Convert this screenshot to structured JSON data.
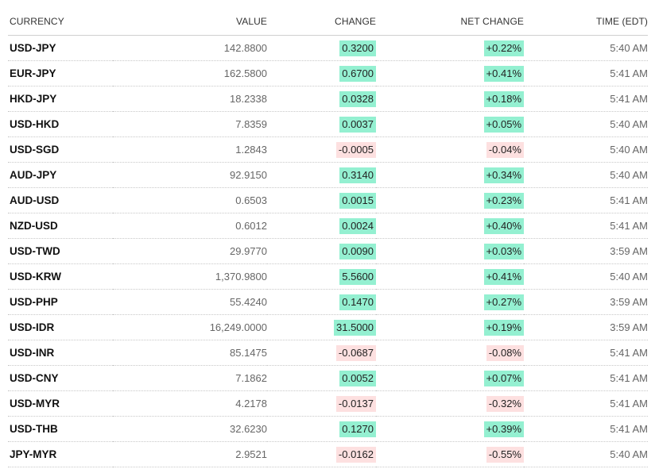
{
  "header": {
    "currency": "CURRENCY",
    "value": "VALUE",
    "change": "CHANGE",
    "net_change": "NET CHANGE",
    "time": "TIME (EDT)"
  },
  "colors": {
    "positive": "#94f0d1",
    "negative": "#fde0e0"
  },
  "rows": [
    {
      "currency": "USD-JPY",
      "value": "142.8800",
      "change": "0.3200",
      "net_change": "+0.22%",
      "time": "5:40 AM",
      "direction": "pos"
    },
    {
      "currency": "EUR-JPY",
      "value": "162.5800",
      "change": "0.6700",
      "net_change": "+0.41%",
      "time": "5:41 AM",
      "direction": "pos"
    },
    {
      "currency": "HKD-JPY",
      "value": "18.2338",
      "change": "0.0328",
      "net_change": "+0.18%",
      "time": "5:41 AM",
      "direction": "pos"
    },
    {
      "currency": "USD-HKD",
      "value": "7.8359",
      "change": "0.0037",
      "net_change": "+0.05%",
      "time": "5:40 AM",
      "direction": "pos"
    },
    {
      "currency": "USD-SGD",
      "value": "1.2843",
      "change": "-0.0005",
      "net_change": "-0.04%",
      "time": "5:40 AM",
      "direction": "neg"
    },
    {
      "currency": "AUD-JPY",
      "value": "92.9150",
      "change": "0.3140",
      "net_change": "+0.34%",
      "time": "5:40 AM",
      "direction": "pos"
    },
    {
      "currency": "AUD-USD",
      "value": "0.6503",
      "change": "0.0015",
      "net_change": "+0.23%",
      "time": "5:41 AM",
      "direction": "pos"
    },
    {
      "currency": "NZD-USD",
      "value": "0.6012",
      "change": "0.0024",
      "net_change": "+0.40%",
      "time": "5:41 AM",
      "direction": "pos"
    },
    {
      "currency": "USD-TWD",
      "value": "29.9770",
      "change": "0.0090",
      "net_change": "+0.03%",
      "time": "3:59 AM",
      "direction": "pos"
    },
    {
      "currency": "USD-KRW",
      "value": "1,370.9800",
      "change": "5.5600",
      "net_change": "+0.41%",
      "time": "5:40 AM",
      "direction": "pos"
    },
    {
      "currency": "USD-PHP",
      "value": "55.4240",
      "change": "0.1470",
      "net_change": "+0.27%",
      "time": "3:59 AM",
      "direction": "pos"
    },
    {
      "currency": "USD-IDR",
      "value": "16,249.0000",
      "change": "31.5000",
      "net_change": "+0.19%",
      "time": "3:59 AM",
      "direction": "pos"
    },
    {
      "currency": "USD-INR",
      "value": "85.1475",
      "change": "-0.0687",
      "net_change": "-0.08%",
      "time": "5:41 AM",
      "direction": "neg"
    },
    {
      "currency": "USD-CNY",
      "value": "7.1862",
      "change": "0.0052",
      "net_change": "+0.07%",
      "time": "5:41 AM",
      "direction": "pos"
    },
    {
      "currency": "USD-MYR",
      "value": "4.2178",
      "change": "-0.0137",
      "net_change": "-0.32%",
      "time": "5:41 AM",
      "direction": "neg"
    },
    {
      "currency": "USD-THB",
      "value": "32.6230",
      "change": "0.1270",
      "net_change": "+0.39%",
      "time": "5:41 AM",
      "direction": "pos"
    },
    {
      "currency": "JPY-MYR",
      "value": "2.9521",
      "change": "-0.0162",
      "net_change": "-0.55%",
      "time": "5:40 AM",
      "direction": "neg"
    }
  ]
}
